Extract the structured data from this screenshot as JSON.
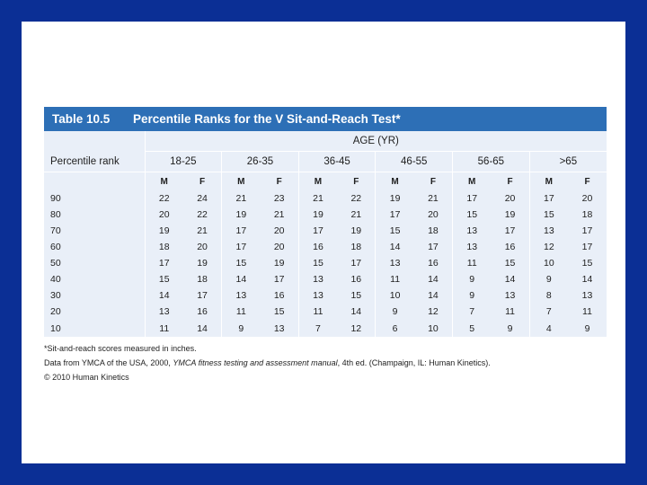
{
  "table": {
    "number": "Table 10.5",
    "title": "Percentile Ranks for the V Sit-and-Reach Test*",
    "age_header": "AGE (YR)",
    "rank_header": "Percentile rank",
    "age_groups": [
      "18-25",
      "26-35",
      "36-45",
      "46-55",
      "56-65",
      ">65"
    ],
    "sex_labels": [
      "M",
      "F"
    ],
    "rows": [
      {
        "rank": "90",
        "values": [
          "22",
          "24",
          "21",
          "23",
          "21",
          "22",
          "19",
          "21",
          "17",
          "20",
          "17",
          "20"
        ]
      },
      {
        "rank": "80",
        "values": [
          "20",
          "22",
          "19",
          "21",
          "19",
          "21",
          "17",
          "20",
          "15",
          "19",
          "15",
          "18"
        ]
      },
      {
        "rank": "70",
        "values": [
          "19",
          "21",
          "17",
          "20",
          "17",
          "19",
          "15",
          "18",
          "13",
          "17",
          "13",
          "17"
        ]
      },
      {
        "rank": "60",
        "values": [
          "18",
          "20",
          "17",
          "20",
          "16",
          "18",
          "14",
          "17",
          "13",
          "16",
          "12",
          "17"
        ]
      },
      {
        "rank": "50",
        "values": [
          "17",
          "19",
          "15",
          "19",
          "15",
          "17",
          "13",
          "16",
          "11",
          "15",
          "10",
          "15"
        ]
      },
      {
        "rank": "40",
        "values": [
          "15",
          "18",
          "14",
          "17",
          "13",
          "16",
          "11",
          "14",
          "9",
          "14",
          "9",
          "14"
        ]
      },
      {
        "rank": "30",
        "values": [
          "14",
          "17",
          "13",
          "16",
          "13",
          "15",
          "10",
          "14",
          "9",
          "13",
          "8",
          "13"
        ]
      },
      {
        "rank": "20",
        "values": [
          "13",
          "16",
          "11",
          "15",
          "11",
          "14",
          "9",
          "12",
          "7",
          "11",
          "7",
          "11"
        ]
      },
      {
        "rank": "10",
        "values": [
          "11",
          "14",
          "9",
          "13",
          "7",
          "12",
          "6",
          "10",
          "5",
          "9",
          "4",
          "9"
        ]
      }
    ]
  },
  "notes": {
    "footnote": "*Sit-and-reach scores measured in inches.",
    "source_prefix": "Data from YMCA of the USA, 2000, ",
    "source_italic": "YMCA fitness testing and assessment manual",
    "source_suffix": ", 4th ed. (Champaign, IL: Human Kinetics).",
    "copyright": "© 2010 Human Kinetics"
  },
  "colors": {
    "background": "#0b2f95",
    "title_bar": "#2d6fb6",
    "table_fill": "#e9eff8"
  }
}
